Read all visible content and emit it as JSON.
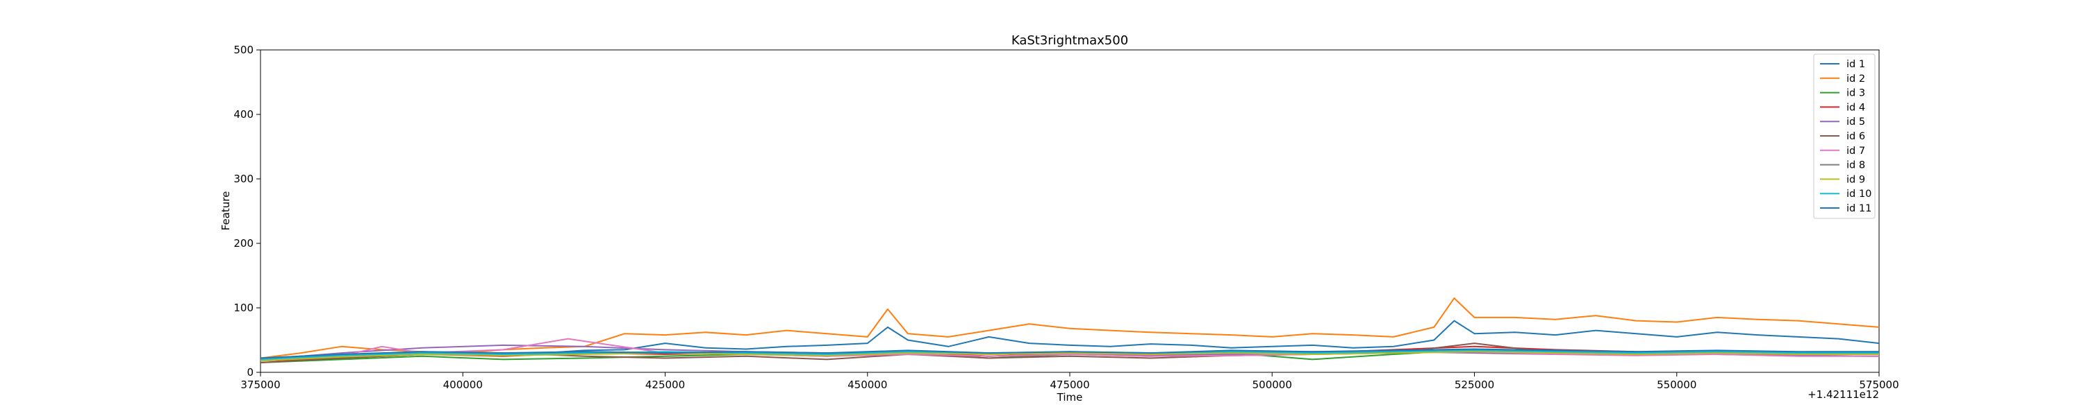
{
  "chart_data": {
    "type": "line",
    "title": "KaSt3rightmax500",
    "xlabel": "Time",
    "ylabel": "Feature",
    "x_offset_label": "+1.42111e12",
    "xlim": [
      375000,
      575000
    ],
    "ylim": [
      0,
      500
    ],
    "x_ticks": [
      375000,
      400000,
      425000,
      450000,
      475000,
      500000,
      525000,
      550000,
      575000
    ],
    "x_tick_labels": [
      "375000",
      "400000",
      "425000",
      "450000",
      "475000",
      "500000",
      "525000",
      "550000",
      "575000"
    ],
    "y_ticks": [
      0,
      100,
      200,
      300,
      400,
      500
    ],
    "y_tick_labels": [
      "0",
      "100",
      "200",
      "300",
      "400",
      "500"
    ],
    "grid": false,
    "legend_position": "top-right",
    "series": [
      {
        "name": "id 1",
        "color": "#1f77b4",
        "x": [
          375000,
          380000,
          385000,
          390000,
          395000,
          400000,
          405000,
          410000,
          415000,
          420000,
          425000,
          430000,
          435000,
          440000,
          445000,
          450000,
          452500,
          455000,
          460000,
          465000,
          470000,
          475000,
          480000,
          485000,
          490000,
          495000,
          500000,
          505000,
          510000,
          515000,
          520000,
          522500,
          525000,
          530000,
          535000,
          540000,
          545000,
          550000,
          555000,
          560000,
          565000,
          570000,
          575000
        ],
        "y": [
          20,
          25,
          22,
          28,
          30,
          32,
          28,
          30,
          34,
          35,
          45,
          38,
          36,
          40,
          42,
          45,
          70,
          50,
          40,
          55,
          45,
          42,
          40,
          44,
          42,
          38,
          40,
          42,
          38,
          40,
          50,
          80,
          60,
          62,
          58,
          65,
          60,
          55,
          62,
          58,
          55,
          52,
          45
        ]
      },
      {
        "name": "id 2",
        "color": "#ff7f0e",
        "x": [
          375000,
          380000,
          385000,
          390000,
          395000,
          400000,
          405000,
          410000,
          415000,
          420000,
          425000,
          430000,
          435000,
          440000,
          445000,
          450000,
          452500,
          455000,
          460000,
          465000,
          470000,
          475000,
          480000,
          485000,
          490000,
          495000,
          500000,
          505000,
          510000,
          515000,
          520000,
          522500,
          525000,
          530000,
          535000,
          540000,
          545000,
          550000,
          555000,
          560000,
          565000,
          570000,
          575000
        ],
        "y": [
          22,
          30,
          40,
          35,
          32,
          30,
          35,
          38,
          40,
          60,
          58,
          62,
          58,
          65,
          60,
          55,
          98,
          60,
          55,
          65,
          75,
          68,
          65,
          62,
          60,
          58,
          55,
          60,
          58,
          55,
          70,
          115,
          85,
          85,
          82,
          88,
          80,
          78,
          85,
          82,
          80,
          75,
          70
        ]
      },
      {
        "name": "id 3",
        "color": "#2ca02c",
        "x": [
          375000,
          385000,
          395000,
          405000,
          415000,
          425000,
          435000,
          445000,
          455000,
          465000,
          475000,
          485000,
          495000,
          505000,
          515000,
          525000,
          535000,
          545000,
          555000,
          565000,
          575000
        ],
        "y": [
          15,
          20,
          25,
          20,
          22,
          25,
          28,
          25,
          30,
          22,
          28,
          25,
          30,
          20,
          28,
          35,
          32,
          30,
          28,
          26,
          25
        ]
      },
      {
        "name": "id 4",
        "color": "#d62728",
        "x": [
          375000,
          385000,
          395000,
          405000,
          415000,
          425000,
          435000,
          445000,
          455000,
          465000,
          475000,
          485000,
          495000,
          505000,
          515000,
          525000,
          535000,
          545000,
          555000,
          565000,
          575000
        ],
        "y": [
          18,
          22,
          28,
          25,
          30,
          28,
          30,
          28,
          32,
          25,
          30,
          28,
          32,
          30,
          35,
          40,
          35,
          32,
          30,
          30,
          28
        ]
      },
      {
        "name": "id 5",
        "color": "#9467bd",
        "x": [
          375000,
          385000,
          395000,
          405000,
          415000,
          425000,
          435000,
          445000,
          455000,
          465000,
          475000,
          485000,
          495000,
          505000,
          515000,
          525000,
          535000,
          545000,
          555000,
          565000,
          575000
        ],
        "y": [
          20,
          30,
          38,
          42,
          40,
          35,
          32,
          30,
          28,
          25,
          28,
          26,
          28,
          30,
          32,
          30,
          28,
          30,
          28,
          26,
          25
        ]
      },
      {
        "name": "id 6",
        "color": "#8c564b",
        "x": [
          375000,
          385000,
          395000,
          405000,
          415000,
          425000,
          435000,
          445000,
          455000,
          465000,
          475000,
          485000,
          495000,
          505000,
          515000,
          525000,
          535000,
          545000,
          555000,
          565000,
          575000
        ],
        "y": [
          15,
          22,
          28,
          30,
          25,
          22,
          25,
          20,
          28,
          22,
          25,
          22,
          26,
          28,
          30,
          45,
          30,
          28,
          30,
          28,
          28
        ]
      },
      {
        "name": "id 7",
        "color": "#e377c2",
        "x": [
          375000,
          385000,
          390000,
          395000,
          405000,
          413000,
          425000,
          435000,
          445000,
          455000,
          465000,
          475000,
          485000,
          495000,
          505000,
          515000,
          525000,
          535000,
          545000,
          555000,
          565000,
          575000
        ],
        "y": [
          18,
          25,
          40,
          30,
          35,
          52,
          30,
          28,
          25,
          28,
          25,
          28,
          25,
          26,
          28,
          30,
          32,
          28,
          26,
          28,
          25,
          25
        ]
      },
      {
        "name": "id 8",
        "color": "#7f7f7f",
        "x": [
          375000,
          385000,
          395000,
          405000,
          415000,
          425000,
          435000,
          445000,
          455000,
          465000,
          475000,
          485000,
          495000,
          505000,
          515000,
          525000,
          535000,
          545000,
          555000,
          565000,
          575000
        ],
        "y": [
          22,
          28,
          30,
          28,
          32,
          30,
          28,
          30,
          32,
          28,
          30,
          28,
          30,
          32,
          30,
          35,
          32,
          30,
          32,
          30,
          30
        ]
      },
      {
        "name": "id 9",
        "color": "#bcbd22",
        "x": [
          375000,
          385000,
          395000,
          405000,
          415000,
          425000,
          435000,
          445000,
          455000,
          465000,
          475000,
          485000,
          495000,
          505000,
          515000,
          525000,
          535000,
          545000,
          555000,
          565000,
          575000
        ],
        "y": [
          18,
          24,
          28,
          26,
          28,
          30,
          28,
          26,
          30,
          28,
          30,
          28,
          30,
          28,
          30,
          32,
          30,
          28,
          30,
          28,
          28
        ]
      },
      {
        "name": "id 10",
        "color": "#17becf",
        "x": [
          375000,
          385000,
          395000,
          405000,
          415000,
          425000,
          435000,
          445000,
          455000,
          465000,
          475000,
          485000,
          495000,
          505000,
          515000,
          525000,
          535000,
          545000,
          555000,
          565000,
          575000
        ],
        "y": [
          20,
          26,
          30,
          28,
          30,
          32,
          30,
          28,
          32,
          30,
          32,
          30,
          32,
          30,
          32,
          34,
          32,
          30,
          32,
          30,
          30
        ]
      },
      {
        "name": "id 11",
        "color": "#1f77b4",
        "x": [
          375000,
          385000,
          395000,
          405000,
          415000,
          425000,
          435000,
          445000,
          455000,
          465000,
          475000,
          485000,
          495000,
          505000,
          515000,
          525000,
          535000,
          545000,
          555000,
          565000,
          575000
        ],
        "y": [
          22,
          28,
          32,
          30,
          32,
          30,
          32,
          30,
          34,
          30,
          32,
          30,
          34,
          32,
          34,
          36,
          34,
          32,
          34,
          32,
          32
        ]
      }
    ]
  }
}
